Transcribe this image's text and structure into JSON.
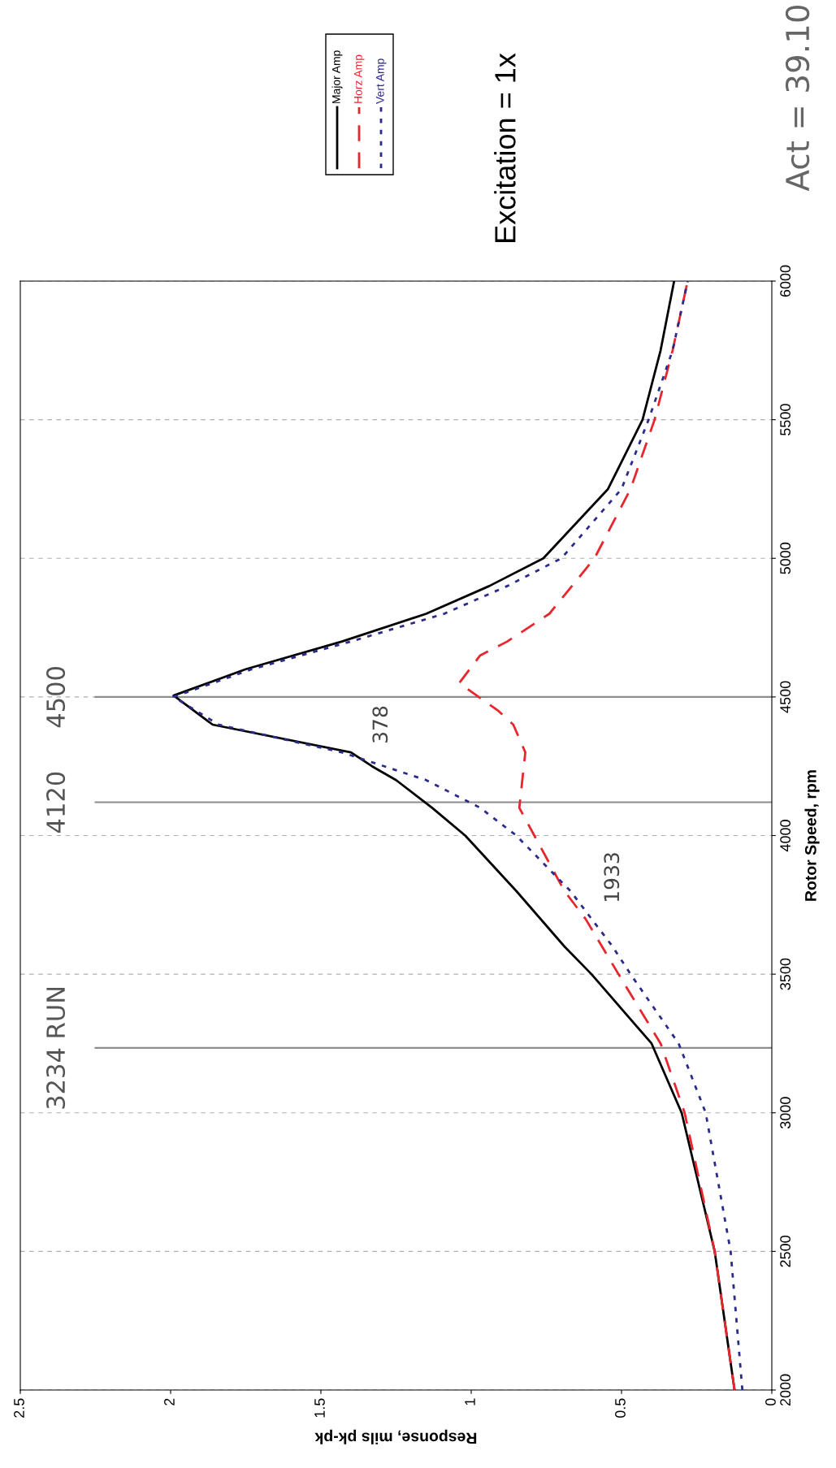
{
  "chart_data": {
    "type": "line",
    "xlabel": "Response, mils pk-pk",
    "ylabel": "Rotor Speed, rpm",
    "xlim": [
      2.5,
      0
    ],
    "xticks": [
      0,
      0.5,
      1,
      1.5,
      2,
      2.5
    ],
    "ylim": [
      2000,
      6000
    ],
    "yticks": [
      2000,
      2500,
      3000,
      3500,
      4000,
      4500,
      5000,
      5500,
      6000
    ],
    "grid": "y",
    "legend": "top",
    "series": [
      {
        "name": "Major Amp",
        "color": "#000000",
        "line_style": "solid",
        "values": [
          2000,
          2500,
          3000,
          3250,
          3500,
          3600,
          3800,
          4000,
          4100,
          4200,
          4250,
          4300,
          4400,
          4505,
          4600,
          4700,
          4800,
          4900,
          5000,
          5250,
          5500,
          5750,
          6000
        ],
        "x": [
          0.124,
          0.19,
          0.3,
          0.4,
          0.6,
          0.69,
          0.85,
          1.02,
          1.13,
          1.25,
          1.33,
          1.4,
          1.86,
          1.99,
          1.75,
          1.43,
          1.15,
          0.94,
          0.76,
          0.545,
          0.43,
          0.37,
          0.325
        ]
      },
      {
        "name": "Horz Amp",
        "color": "#e8262d",
        "line_style": "dashed",
        "values": [
          2000,
          2500,
          3000,
          3250,
          3500,
          3700,
          3800,
          3900,
          4000,
          4100,
          4200,
          4300,
          4400,
          4450,
          4550,
          4650,
          4700,
          4800,
          5000,
          5250,
          5500,
          5750,
          6000
        ],
        "x": [
          0.124,
          0.19,
          0.29,
          0.37,
          0.51,
          0.62,
          0.69,
          0.74,
          0.79,
          0.84,
          0.83,
          0.82,
          0.86,
          0.91,
          1.04,
          0.97,
          0.88,
          0.74,
          0.59,
          0.47,
          0.39,
          0.33,
          0.28
        ]
      },
      {
        "name": "Vert Amp",
        "color": "#2b2b8c",
        "line_style": "dotted",
        "values": [
          2000,
          2500,
          3000,
          3250,
          3500,
          3600,
          3800,
          4000,
          4100,
          4200,
          4300,
          4400,
          4500,
          4600,
          4700,
          4800,
          4900,
          5000,
          5250,
          5500,
          5750,
          6000
        ],
        "x": [
          0.098,
          0.137,
          0.22,
          0.31,
          0.47,
          0.53,
          0.67,
          0.85,
          0.97,
          1.15,
          1.43,
          1.84,
          1.99,
          1.73,
          1.4,
          1.09,
          0.88,
          0.7,
          0.5,
          0.41,
          0.33,
          0.28
        ]
      }
    ],
    "ref_lines": [
      {
        "axis": "y",
        "value": 4500,
        "label": "4500",
        "color": "#8c8c8c"
      },
      {
        "axis": "y",
        "value": 4120,
        "label": "4120",
        "color": "#8c8c8c"
      },
      {
        "axis": "y",
        "value": 3234,
        "label": "3234 RUN",
        "color": "#8c8c8c"
      }
    ],
    "annotations": [
      "Excitation = 1x",
      "Act = 39.10",
      "1933",
      "378"
    ]
  }
}
